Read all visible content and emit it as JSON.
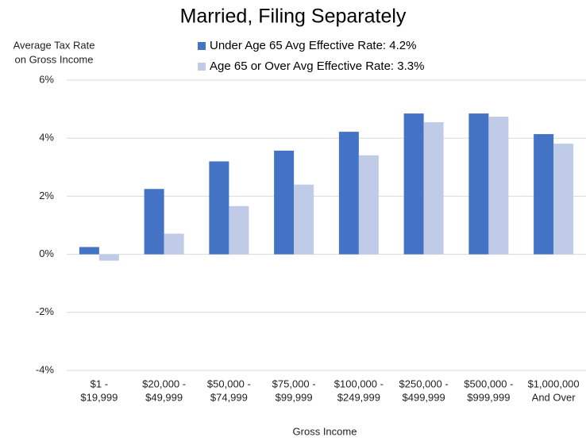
{
  "chart_data": {
    "type": "bar",
    "title": "Married, Filing Separately",
    "y_label": [
      "Average Tax Rate",
      "on Gross Income"
    ],
    "x_label": "Gross Income",
    "categories": [
      [
        "$1 -",
        "$19,999"
      ],
      [
        "$20,000 -",
        "$49,999"
      ],
      [
        "$50,000 -",
        "$74,999"
      ],
      [
        "$75,000 -",
        "$99,999"
      ],
      [
        "$100,000 -",
        "$249,999"
      ],
      [
        "$250,000 -",
        "$499,999"
      ],
      [
        "$500,000 -",
        "$999,999"
      ],
      [
        "$1,000,000",
        "And Over"
      ]
    ],
    "series": [
      {
        "name": "Under Age 65 Avg Effective Rate:  4.2%",
        "color": "#4472c4",
        "values": [
          0.25,
          2.25,
          3.2,
          3.57,
          4.22,
          4.85,
          4.85,
          4.14
        ]
      },
      {
        "name": "Age 65 or Over Avg Effective Rate:  3.3%",
        "color": "#bfcbe7",
        "values": [
          -0.22,
          0.71,
          1.66,
          2.4,
          3.41,
          4.55,
          4.74,
          3.81
        ]
      }
    ],
    "ylim": [
      -4,
      6
    ],
    "yticks": [
      {
        "value": -4,
        "label": "-4%"
      },
      {
        "value": -2,
        "label": "-2%"
      },
      {
        "value": 0,
        "label": "0%"
      },
      {
        "value": 2,
        "label": "2%"
      },
      {
        "value": 4,
        "label": "4%"
      },
      {
        "value": 6,
        "label": "6%"
      }
    ],
    "grid": true
  }
}
